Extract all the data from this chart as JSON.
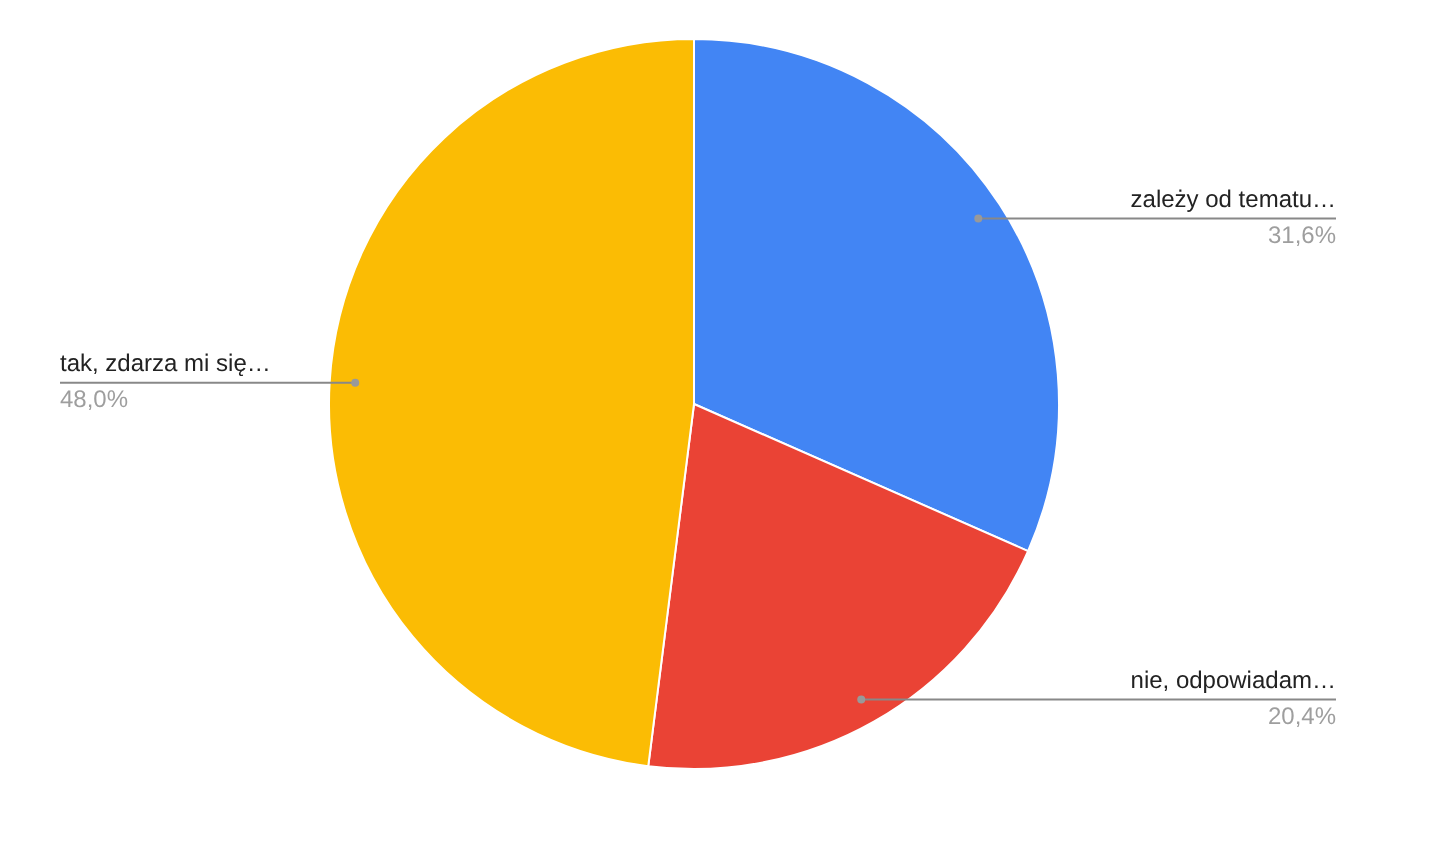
{
  "chart_data": {
    "type": "pie",
    "categories": [
      "zależy od tematu…",
      "nie, odpowiadam…",
      "tak, zdarza mi się…"
    ],
    "values": [
      31.6,
      20.4,
      48.0
    ],
    "colors": [
      "#4285f4",
      "#ea4335",
      "#fbbc04"
    ],
    "value_labels": [
      "31,6%",
      "20,4%",
      "48,0%"
    ],
    "legend": false
  }
}
